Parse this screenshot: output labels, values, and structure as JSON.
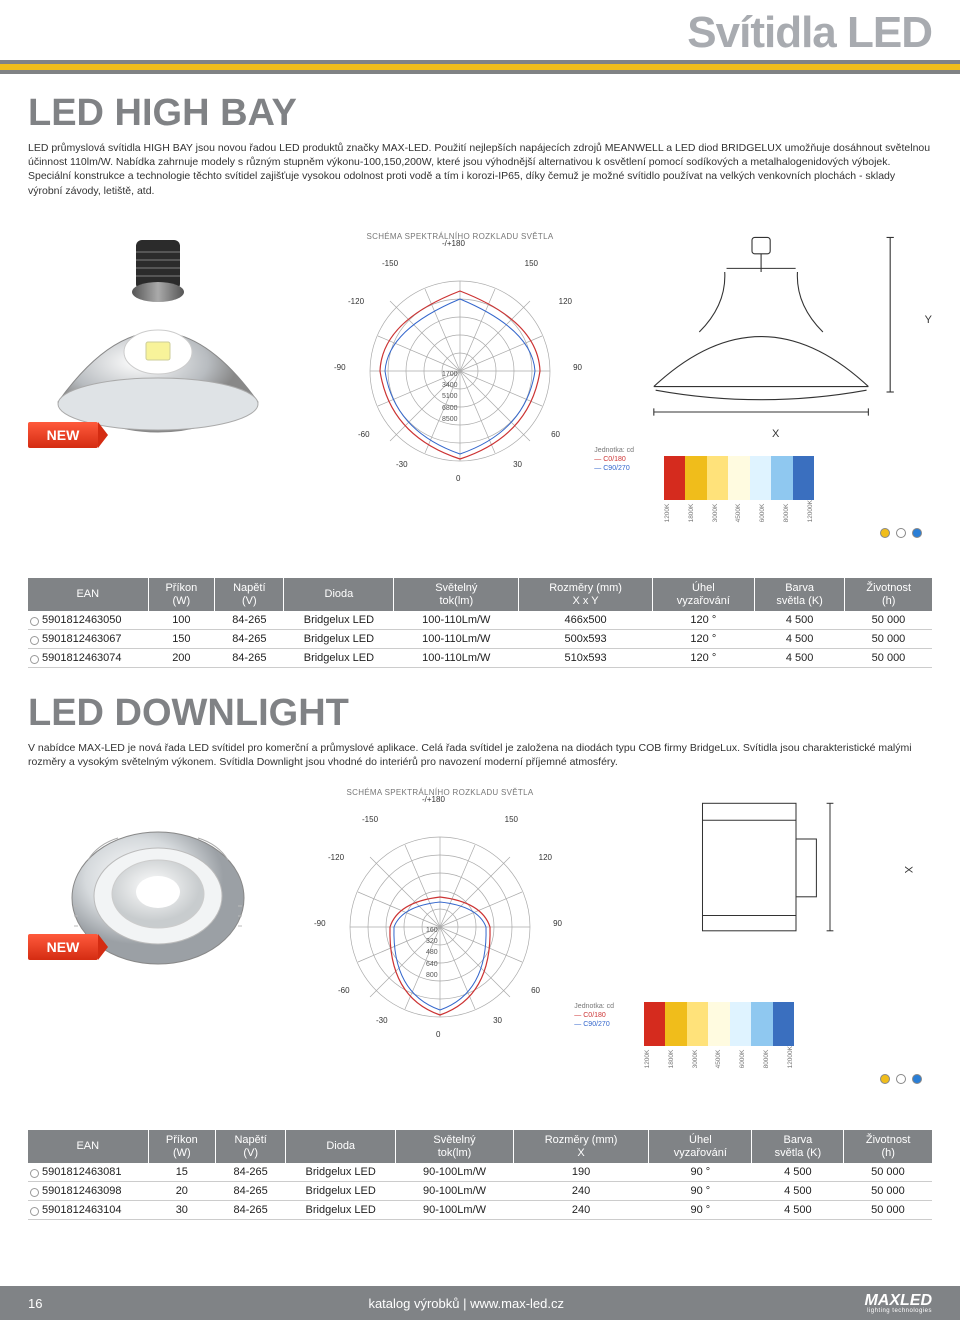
{
  "page_title": "Svítidla LED",
  "highbay": {
    "title": "LED HIGH BAY",
    "desc": "LED průmyslová svítidla HIGH BAY jsou novou řadou LED produktů značky MAX-LED. Použití nejlepších napájecích zdrojů MEANWELL a LED diod BRIDGELUX umožňuje dosáhnout světelnou účinnost 110lm/W. Nabídka zahrnuje modely s různým stupněm výkonu-100,150,200W, které jsou výhodnější alternativou k osvětlení pomocí sodíkových a metalhalogenidových výbojek. Speciální konstrukce a technologie těchto svítidel zajišťuje vysokou odolnost proti vodě a tím i korozi-IP65, díky čemuž je možné svítidlo používat na velkých venkovních plochách - sklady výrobní závody, letiště, atd.",
    "polar_rings": [
      "1700",
      "3400",
      "5100",
      "6800",
      "8500"
    ],
    "diagram_x": "X",
    "diagram_y": "Y"
  },
  "schema_label": "SCHÉMA SPEKTRÁLNÍHO ROZKLADU SVĚTLA",
  "polar_angles": {
    "top": "-/+180",
    "l150": "-150",
    "r150": "150",
    "l120": "-120",
    "r120": "120",
    "l90": "-90",
    "r90": "90",
    "l60": "-60",
    "r60": "60",
    "l30": "-30",
    "r30": "30",
    "bot": "0"
  },
  "polar_legend": {
    "unit": "Jednotka: cd",
    "a": "C0/180",
    "b": "C90/270"
  },
  "new": "NEW",
  "kelvin": [
    "1200K",
    "1800K",
    "3000K",
    "4500K",
    "6000K",
    "8000K",
    "12000K"
  ],
  "strip_colors": [
    "#d52b1e",
    "#f0bd1b",
    "#ffe27a",
    "#fffbe0",
    "#dff3ff",
    "#8fc8f0",
    "#3a6fbf"
  ],
  "table_headers": {
    "ean": "EAN",
    "prikon": "Příkon",
    "prikon_u": "(W)",
    "napeti": "Napětí",
    "napeti_u": "(V)",
    "dioda": "Dioda",
    "svetelny": "Světelný",
    "svetelny_u": "tok(lm)",
    "rozmery": "Rozměry (mm)",
    "rozmery_xy": "X x Y",
    "rozmery_x": "X",
    "uhel": "Úhel",
    "uhel_u": "vyzařování",
    "barva": "Barva",
    "barva_u": "světla (K)",
    "zivot": "Životnost",
    "zivot_u": "(h)"
  },
  "highbay_rows": [
    {
      "ean": "5901812463050",
      "w": "100",
      "v": "84-265",
      "d": "Bridgelux LED",
      "lm": "100-110Lm/W",
      "dim": "466x500",
      "ang": "120 °",
      "k": "4 500",
      "h": "50 000"
    },
    {
      "ean": "5901812463067",
      "w": "150",
      "v": "84-265",
      "d": "Bridgelux LED",
      "lm": "100-110Lm/W",
      "dim": "500x593",
      "ang": "120 °",
      "k": "4 500",
      "h": "50 000"
    },
    {
      "ean": "5901812463074",
      "w": "200",
      "v": "84-265",
      "d": "Bridgelux LED",
      "lm": "100-110Lm/W",
      "dim": "510x593",
      "ang": "120 °",
      "k": "4 500",
      "h": "50 000"
    }
  ],
  "downlight": {
    "title": "LED DOWNLIGHT",
    "desc": "V nabídce MAX-LED je nová řada LED svítidel pro komerční a průmyslové aplikace. Celá řada svítidel je založena na diodách typu COB firmy BridgeLux. Svítidla jsou charakteristické malými rozměry a vysokým světelným výkonem. Svítidla Downlight jsou vhodné do interiérů pro navození moderní příjemné atmosféry.",
    "polar_rings": [
      "160",
      "320",
      "480",
      "640",
      "800"
    ],
    "diagram_x": "X"
  },
  "downlight_rows": [
    {
      "ean": "5901812463081",
      "w": "15",
      "v": "84-265",
      "d": "Bridgelux LED",
      "lm": "90-100Lm/W",
      "dim": "190",
      "ang": "90 °",
      "k": "4 500",
      "h": "50 000"
    },
    {
      "ean": "5901812463098",
      "w": "20",
      "v": "84-265",
      "d": "Bridgelux LED",
      "lm": "90-100Lm/W",
      "dim": "240",
      "ang": "90 °",
      "k": "4 500",
      "h": "50 000"
    },
    {
      "ean": "5901812463104",
      "w": "30",
      "v": "84-265",
      "d": "Bridgelux LED",
      "lm": "90-100Lm/W",
      "dim": "240",
      "ang": "90 °",
      "k": "4 500",
      "h": "50 000"
    }
  ],
  "footer": {
    "page": "16",
    "mid": "katalog výrobků | www.max-led.cz",
    "logo": "MAXLED",
    "tag": "lighting technologies"
  }
}
